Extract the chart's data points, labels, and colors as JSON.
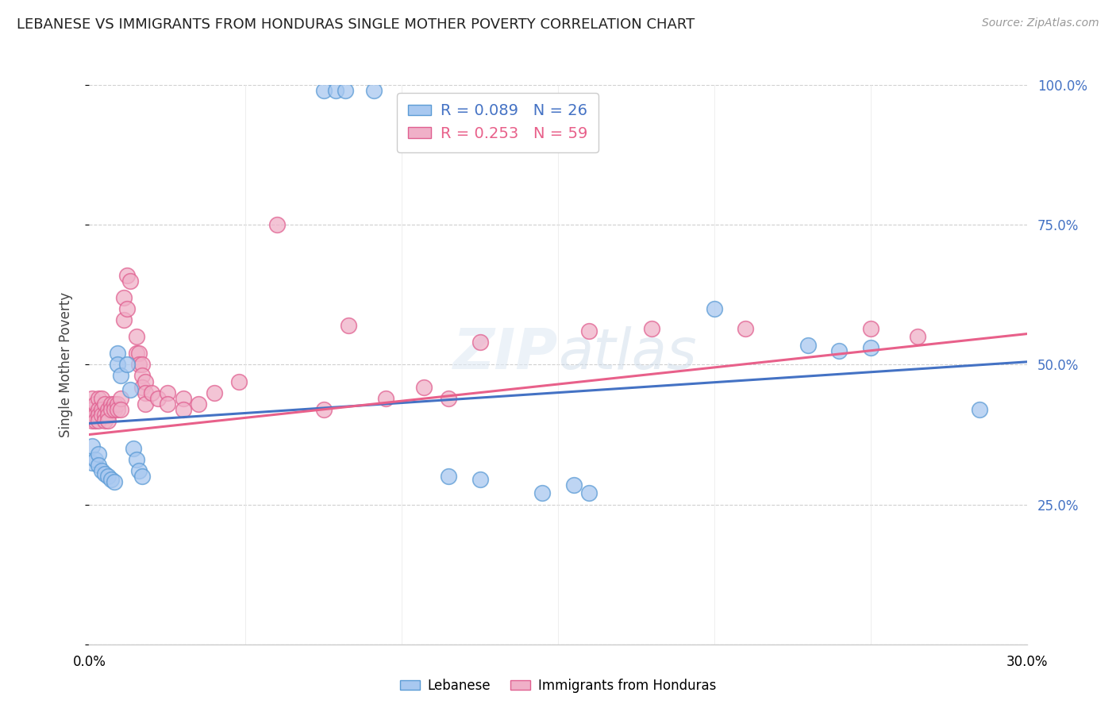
{
  "title": "LEBANESE VS IMMIGRANTS FROM HONDURAS SINGLE MOTHER POVERTY CORRELATION CHART",
  "source": "Source: ZipAtlas.com",
  "ylabel": "Single Mother Poverty",
  "x_min": 0.0,
  "x_max": 0.3,
  "y_min": 0.0,
  "y_max": 1.0,
  "legend_entries": [
    {
      "label": "Lebanese",
      "color": "#a8c8f0",
      "edge_color": "#5b9bd5",
      "R": 0.089,
      "N": 26
    },
    {
      "label": "Immigrants from Honduras",
      "color": "#f0b0c8",
      "edge_color": "#e06090",
      "R": 0.253,
      "N": 59
    }
  ],
  "watermark": "ZIPatlas",
  "blue_color": "#a8c8f0",
  "pink_color": "#f0b0c8",
  "blue_edge": "#5b9bd5",
  "pink_edge": "#e06090",
  "blue_line_color": "#4472c4",
  "pink_line_color": "#e8608a",
  "blue_scatter": [
    [
      0.001,
      0.355
    ],
    [
      0.001,
      0.325
    ],
    [
      0.002,
      0.33
    ],
    [
      0.003,
      0.34
    ],
    [
      0.003,
      0.32
    ],
    [
      0.004,
      0.31
    ],
    [
      0.005,
      0.305
    ],
    [
      0.006,
      0.3
    ],
    [
      0.007,
      0.295
    ],
    [
      0.008,
      0.29
    ],
    [
      0.009,
      0.52
    ],
    [
      0.009,
      0.5
    ],
    [
      0.01,
      0.48
    ],
    [
      0.012,
      0.5
    ],
    [
      0.013,
      0.455
    ],
    [
      0.014,
      0.35
    ],
    [
      0.015,
      0.33
    ],
    [
      0.016,
      0.31
    ],
    [
      0.017,
      0.3
    ],
    [
      0.075,
      0.99
    ],
    [
      0.079,
      0.99
    ],
    [
      0.082,
      0.99
    ],
    [
      0.091,
      0.99
    ],
    [
      0.115,
      0.3
    ],
    [
      0.125,
      0.295
    ],
    [
      0.145,
      0.27
    ],
    [
      0.155,
      0.285
    ],
    [
      0.16,
      0.27
    ],
    [
      0.2,
      0.6
    ],
    [
      0.23,
      0.535
    ],
    [
      0.24,
      0.525
    ],
    [
      0.25,
      0.53
    ],
    [
      0.285,
      0.42
    ]
  ],
  "pink_scatter": [
    [
      0.001,
      0.44
    ],
    [
      0.001,
      0.42
    ],
    [
      0.001,
      0.41
    ],
    [
      0.001,
      0.4
    ],
    [
      0.002,
      0.43
    ],
    [
      0.002,
      0.41
    ],
    [
      0.002,
      0.4
    ],
    [
      0.003,
      0.44
    ],
    [
      0.003,
      0.42
    ],
    [
      0.003,
      0.41
    ],
    [
      0.003,
      0.4
    ],
    [
      0.004,
      0.44
    ],
    [
      0.004,
      0.42
    ],
    [
      0.004,
      0.41
    ],
    [
      0.005,
      0.43
    ],
    [
      0.005,
      0.41
    ],
    [
      0.005,
      0.4
    ],
    [
      0.006,
      0.42
    ],
    [
      0.006,
      0.41
    ],
    [
      0.006,
      0.4
    ],
    [
      0.007,
      0.43
    ],
    [
      0.007,
      0.42
    ],
    [
      0.008,
      0.43
    ],
    [
      0.008,
      0.42
    ],
    [
      0.009,
      0.43
    ],
    [
      0.009,
      0.42
    ],
    [
      0.01,
      0.44
    ],
    [
      0.01,
      0.42
    ],
    [
      0.011,
      0.58
    ],
    [
      0.011,
      0.62
    ],
    [
      0.012,
      0.6
    ],
    [
      0.012,
      0.66
    ],
    [
      0.013,
      0.65
    ],
    [
      0.015,
      0.55
    ],
    [
      0.015,
      0.52
    ],
    [
      0.016,
      0.52
    ],
    [
      0.016,
      0.5
    ],
    [
      0.017,
      0.5
    ],
    [
      0.017,
      0.48
    ],
    [
      0.017,
      0.46
    ],
    [
      0.018,
      0.47
    ],
    [
      0.018,
      0.45
    ],
    [
      0.018,
      0.43
    ],
    [
      0.02,
      0.45
    ],
    [
      0.022,
      0.44
    ],
    [
      0.025,
      0.45
    ],
    [
      0.025,
      0.43
    ],
    [
      0.03,
      0.44
    ],
    [
      0.03,
      0.42
    ],
    [
      0.035,
      0.43
    ],
    [
      0.04,
      0.45
    ],
    [
      0.048,
      0.47
    ],
    [
      0.06,
      0.75
    ],
    [
      0.075,
      0.42
    ],
    [
      0.083,
      0.57
    ],
    [
      0.095,
      0.44
    ],
    [
      0.107,
      0.46
    ],
    [
      0.115,
      0.44
    ],
    [
      0.125,
      0.54
    ],
    [
      0.16,
      0.56
    ],
    [
      0.18,
      0.565
    ],
    [
      0.21,
      0.565
    ],
    [
      0.25,
      0.565
    ],
    [
      0.265,
      0.55
    ]
  ],
  "blue_line": {
    "x0": 0.0,
    "y0": 0.395,
    "x1": 0.3,
    "y1": 0.505
  },
  "pink_line": {
    "x0": 0.0,
    "y0": 0.375,
    "x1": 0.3,
    "y1": 0.555
  }
}
